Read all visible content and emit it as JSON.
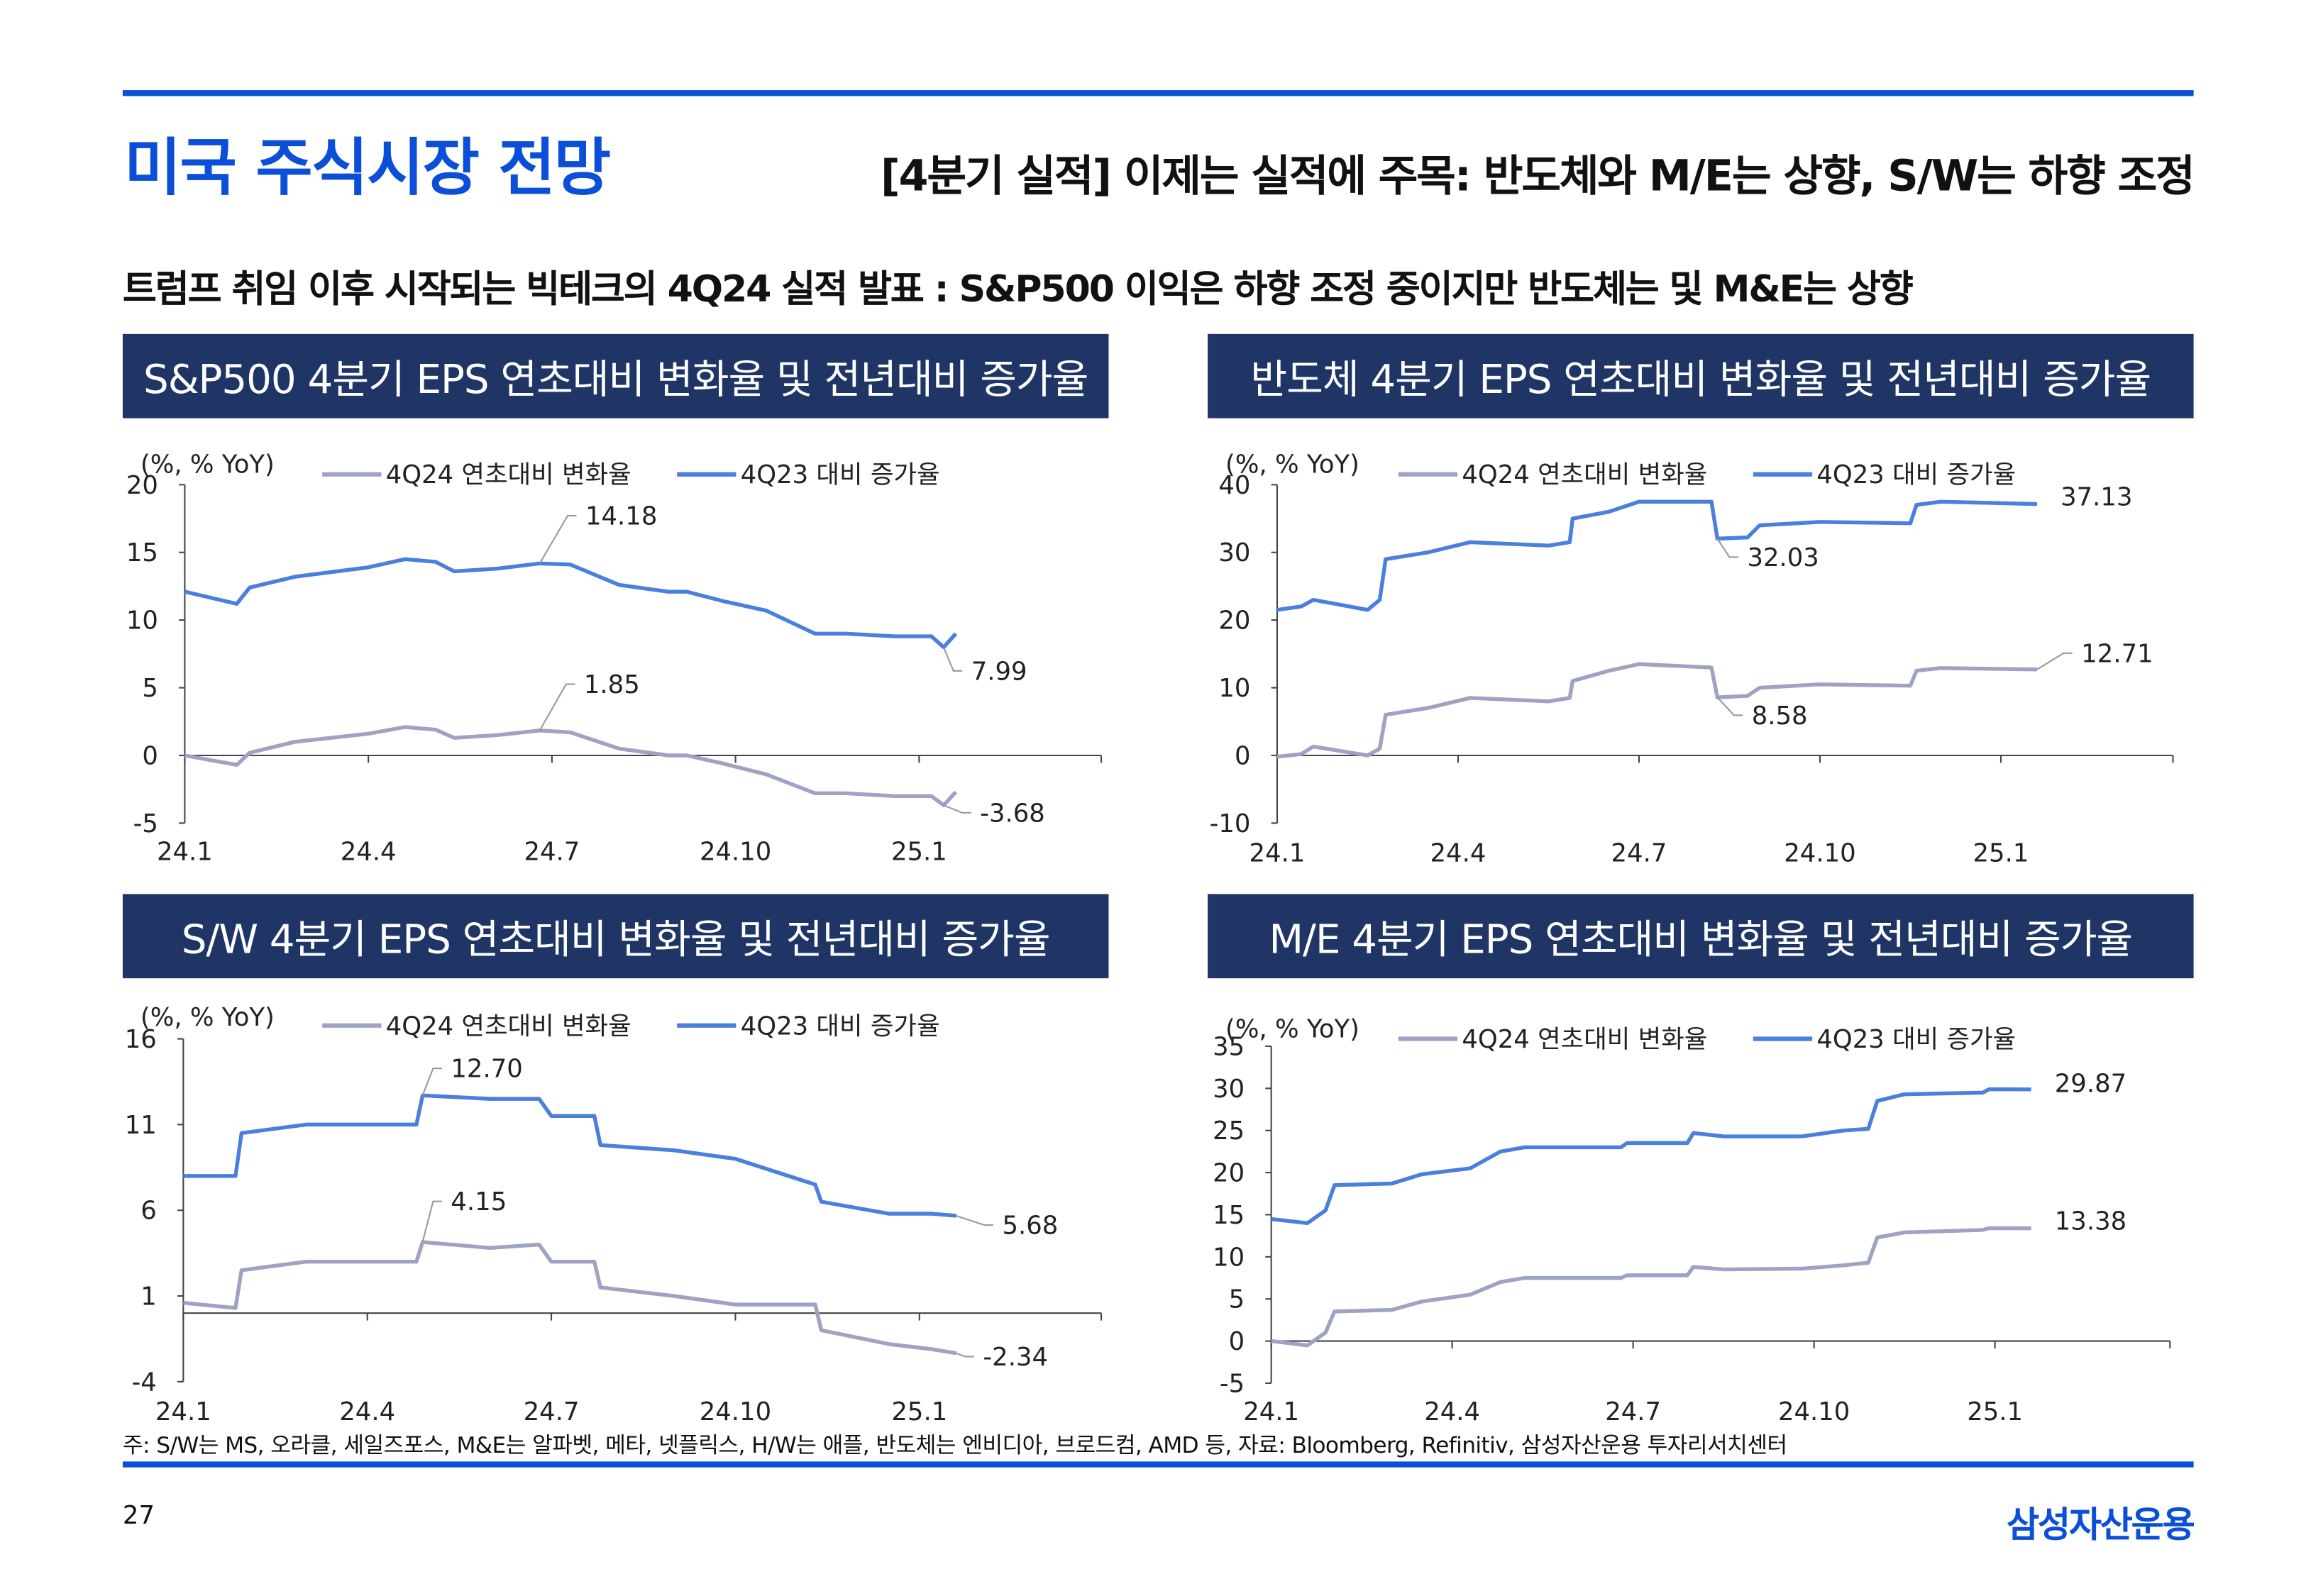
{
  "header": {
    "title": "미국 주식시장 전망",
    "subtitle": "[4분기 실적] 이제는 실적에 주목: 반도체와 M/E는 상향, S/W는 하향 조정"
  },
  "headline": "트럼프 취임 이후 시작되는 빅테크의 4Q24 실적 발표 : S&P500 이익은 하향 조정 중이지만 반도체는 및 M&E는 상향",
  "footnote": "주: S/W는 MS, 오라클, 세일즈포스, M&E는 알파벳, 메타, 넷플릭스, H/W는 애플, 반도체는 엔비디아, 브로드컴, AMD 등, 자료: Bloomberg, Refinitiv, 삼성자산운용 투자리서치센터",
  "page_number": "27",
  "logo": "삼성자산운용",
  "colors": {
    "accent": "#0b4fd8",
    "panel": "#1f3566",
    "series_blue": "#4a7fde",
    "series_gray": "#9ea3c4"
  },
  "chart_data": [
    {
      "type": "line",
      "title": "S&P500 4분기 EPS 연초대비 변화율 및 전년대비 증가율",
      "unit": "(%, % YoY)",
      "x_ticks": [
        "24.1",
        "24.4",
        "24.7",
        "24.10",
        "25.1"
      ],
      "y_ticks": [
        "20",
        "15",
        "10",
        "5",
        "0",
        "-5"
      ],
      "ylim": [
        -5,
        20
      ],
      "x_unit": "months since 24.1",
      "series": [
        {
          "name": "4Q24 연초대비 변화율",
          "color": "#9ea3c4",
          "x": [
            0,
            0.85,
            1.06,
            1.8,
            3.0,
            3.6,
            4.1,
            4.4,
            5.1,
            5.8,
            6.3,
            7.1,
            7.9,
            8.2,
            8.8,
            9.5,
            10.3,
            10.8,
            11.6,
            12.2,
            12.4,
            12.6
          ],
          "y": [
            0,
            -0.7,
            0.2,
            1.0,
            1.6,
            2.1,
            1.9,
            1.3,
            1.5,
            1.85,
            1.7,
            0.5,
            0,
            0,
            -0.6,
            -1.4,
            -2.8,
            -2.8,
            -3.0,
            -3.0,
            -3.68,
            -2.7
          ]
        },
        {
          "name": "4Q23 대비 증가율",
          "color": "#4a7fde",
          "x": [
            0,
            0.85,
            1.06,
            1.8,
            3.0,
            3.6,
            4.1,
            4.4,
            5.1,
            5.8,
            6.3,
            7.1,
            7.9,
            8.2,
            8.8,
            9.5,
            10.3,
            10.8,
            11.6,
            12.2,
            12.4,
            12.6
          ],
          "y": [
            12.1,
            11.2,
            12.4,
            13.2,
            13.9,
            14.5,
            14.3,
            13.6,
            13.8,
            14.18,
            14.1,
            12.6,
            12.1,
            12.1,
            11.4,
            10.7,
            9.0,
            9.0,
            8.8,
            8.8,
            7.99,
            9.0
          ]
        }
      ],
      "annotations": [
        "14.18",
        "1.85",
        "7.99",
        "-3.68"
      ]
    },
    {
      "type": "line",
      "title": "반도체 4분기 EPS 연초대비 변화율 및 전년대비 증가율",
      "unit": "(%, % YoY)",
      "x_ticks": [
        "24.1",
        "24.4",
        "24.7",
        "24.10",
        "25.1"
      ],
      "y_ticks": [
        "40",
        "30",
        "20",
        "10",
        "0",
        "-10"
      ],
      "ylim": [
        -10,
        40
      ],
      "x_unit": "months since 24.1",
      "series": [
        {
          "name": "4Q24 연초대비 변화율",
          "color": "#9ea3c4",
          "x": [
            0,
            0.4,
            0.6,
            1.5,
            1.7,
            1.8,
            2.5,
            3.2,
            4.5,
            4.85,
            4.9,
            5.5,
            6.0,
            7.2,
            7.3,
            7.8,
            8.0,
            9.0,
            10.5,
            10.6,
            11.0,
            12.6
          ],
          "y": [
            -0.2,
            0.2,
            1.3,
            0,
            1,
            6,
            7,
            8.5,
            8,
            8.5,
            11,
            12.5,
            13.5,
            13,
            8.58,
            8.8,
            10,
            10.5,
            10.3,
            12.5,
            12.9,
            12.71
          ]
        },
        {
          "name": "4Q23 대비 증가율",
          "color": "#4a7fde",
          "x": [
            0,
            0.4,
            0.6,
            1.5,
            1.7,
            1.8,
            2.5,
            3.2,
            4.5,
            4.85,
            4.9,
            5.5,
            6.0,
            7.2,
            7.3,
            7.8,
            8.0,
            9.0,
            10.5,
            10.6,
            11.0,
            12.6
          ],
          "y": [
            21.5,
            22,
            23,
            21.5,
            23,
            29,
            30,
            31.5,
            31,
            31.5,
            35,
            36,
            37.5,
            37.5,
            32.03,
            32.2,
            34,
            34.5,
            34.3,
            37,
            37.5,
            37.13
          ]
        }
      ],
      "annotations": [
        "32.03",
        "8.58",
        "37.13",
        "12.71"
      ]
    },
    {
      "type": "line",
      "title": "S/W 4분기 EPS 연초대비 변화율 및 전년대비 증가율",
      "unit": "(%, % YoY)",
      "x_ticks": [
        "24.1",
        "24.4",
        "24.7",
        "24.10",
        "25.1"
      ],
      "y_ticks": [
        "16",
        "11",
        "6",
        "1",
        "-4"
      ],
      "ylim": [
        -4,
        16
      ],
      "x_unit": "months since 24.1",
      "series": [
        {
          "name": "4Q24 연초대비 변화율",
          "color": "#9ea3c4",
          "x": [
            0,
            0.85,
            0.95,
            2.0,
            3.8,
            3.9,
            5.0,
            5.8,
            6.0,
            6.7,
            6.8,
            8.0,
            9.0,
            10.3,
            10.4,
            11.5,
            12.2,
            12.6
          ],
          "y": [
            0.6,
            0.3,
            2.5,
            3.0,
            3.0,
            4.15,
            3.8,
            4.0,
            3.0,
            3.0,
            1.5,
            1.0,
            0.5,
            0.5,
            -1.0,
            -1.8,
            -2.1,
            -2.34
          ]
        },
        {
          "name": "4Q23 대비 증가율",
          "color": "#4a7fde",
          "x": [
            0,
            0.85,
            0.95,
            2.0,
            3.8,
            3.9,
            5.0,
            5.8,
            6.0,
            6.7,
            6.8,
            8.0,
            9.0,
            10.3,
            10.4,
            11.5,
            12.2,
            12.6
          ],
          "y": [
            8.0,
            8.0,
            10.5,
            11.0,
            11.0,
            12.7,
            12.5,
            12.5,
            11.5,
            11.5,
            9.8,
            9.5,
            9.0,
            7.5,
            6.5,
            5.8,
            5.8,
            5.68
          ]
        }
      ],
      "annotations": [
        "12.70",
        "4.15",
        "5.68",
        "-2.34"
      ]
    },
    {
      "type": "line",
      "title": "M/E 4분기 EPS 연초대비 변화율 및 전년대비 증가율",
      "unit": "(%, % YoY)",
      "x_ticks": [
        "24.1",
        "24.4",
        "24.7",
        "24.10",
        "25.1"
      ],
      "y_ticks": [
        "35",
        "30",
        "25",
        "20",
        "15",
        "10",
        "5",
        "0",
        "-5"
      ],
      "ylim": [
        -5,
        35
      ],
      "x_unit": "months since 24.1",
      "series": [
        {
          "name": "4Q24 연초대비 변화율",
          "color": "#9ea3c4",
          "x": [
            0,
            0.6,
            0.9,
            1.05,
            2.0,
            2.5,
            3.3,
            3.8,
            4.2,
            5.8,
            5.9,
            6.9,
            7.0,
            7.5,
            8.8,
            9.5,
            9.9,
            10.05,
            10.5,
            11.8,
            11.9,
            12.6
          ],
          "y": [
            0,
            -0.5,
            1,
            3.5,
            3.7,
            4.7,
            5.5,
            7,
            7.5,
            7.5,
            7.8,
            7.8,
            8.8,
            8.5,
            8.6,
            9,
            9.3,
            12.3,
            12.9,
            13.2,
            13.4,
            13.38
          ]
        },
        {
          "name": "4Q23 대비 증가율",
          "color": "#4a7fde",
          "x": [
            0,
            0.6,
            0.9,
            1.05,
            2.0,
            2.5,
            3.3,
            3.8,
            4.2,
            5.8,
            5.9,
            6.9,
            7.0,
            7.5,
            8.8,
            9.5,
            9.9,
            10.05,
            10.5,
            11.8,
            11.9,
            12.6
          ],
          "y": [
            14.5,
            14,
            15.5,
            18.5,
            18.7,
            19.8,
            20.5,
            22.5,
            23,
            23,
            23.5,
            23.5,
            24.7,
            24.3,
            24.3,
            25,
            25.2,
            28.5,
            29.3,
            29.5,
            29.9,
            29.87
          ]
        }
      ],
      "annotations": [
        "29.87",
        "13.38"
      ]
    }
  ]
}
